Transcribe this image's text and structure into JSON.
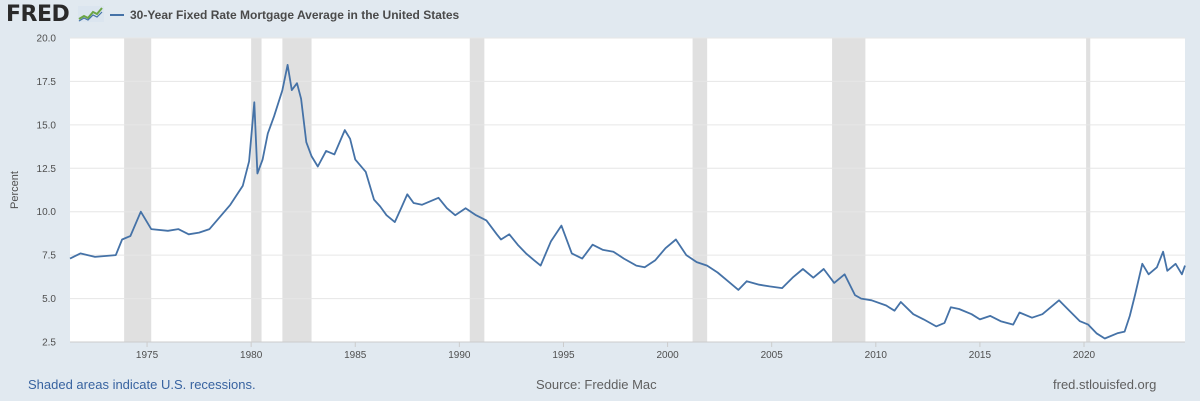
{
  "header": {
    "logo_text": "FRED"
  },
  "footer": {
    "recessions_note": "Shaded areas indicate U.S. recessions.",
    "source": "Source: Freddie Mac",
    "site": "fred.stlouisfed.org"
  },
  "colors": {
    "series": "#4572a7",
    "recession": "#e0e0e0",
    "background": "#e1e9f0",
    "plot_bg": "#ffffff",
    "grid": "#e6e6e6"
  },
  "chart_data": {
    "type": "line",
    "title": "",
    "xlabel": "",
    "ylabel": "Percent",
    "xlim": [
      1971.3,
      2024.85
    ],
    "ylim": [
      2.5,
      20.0
    ],
    "yticks": [
      "2.5",
      "5.0",
      "7.5",
      "10.0",
      "12.5",
      "15.0",
      "17.5",
      "20.0"
    ],
    "xticks": [
      "1975",
      "1980",
      "1985",
      "1990",
      "1995",
      "2000",
      "2005",
      "2010",
      "2015",
      "2020"
    ],
    "grid": "horizontal",
    "legend_position": "top-left",
    "recessions": [
      [
        1973.9,
        1975.2
      ],
      [
        1980.0,
        1980.5
      ],
      [
        1981.5,
        1982.9
      ],
      [
        1990.5,
        1991.2
      ],
      [
        2001.2,
        2001.9
      ],
      [
        2007.9,
        2009.5
      ],
      [
        2020.1,
        2020.3
      ]
    ],
    "series": [
      {
        "name": "30-Year Fixed Rate Mortgage Average in the United States",
        "x": [
          1971.3,
          1971.8,
          1972.5,
          1973.5,
          1973.8,
          1974.2,
          1974.7,
          1975.2,
          1976.0,
          1976.5,
          1977.0,
          1977.5,
          1978.0,
          1978.5,
          1979.0,
          1979.6,
          1979.9,
          1980.15,
          1980.3,
          1980.55,
          1980.8,
          1981.1,
          1981.5,
          1981.75,
          1981.95,
          1982.2,
          1982.4,
          1982.65,
          1982.9,
          1983.2,
          1983.6,
          1984.0,
          1984.5,
          1984.75,
          1985.0,
          1985.5,
          1985.9,
          1986.2,
          1986.5,
          1986.9,
          1987.2,
          1987.5,
          1987.8,
          1988.2,
          1988.6,
          1989.0,
          1989.4,
          1989.8,
          1990.3,
          1990.8,
          1991.3,
          1991.8,
          1992.0,
          1992.4,
          1992.8,
          1993.2,
          1993.6,
          1993.9,
          1994.4,
          1994.9,
          1995.4,
          1995.9,
          1996.4,
          1996.9,
          1997.4,
          1997.9,
          1998.5,
          1998.9,
          1999.4,
          1999.9,
          2000.4,
          2000.9,
          2001.4,
          2001.9,
          2002.4,
          2002.9,
          2003.4,
          2003.8,
          2004.4,
          2004.9,
          2005.5,
          2006.0,
          2006.5,
          2007.0,
          2007.5,
          2008.0,
          2008.5,
          2009.0,
          2009.3,
          2009.8,
          2010.5,
          2010.9,
          2011.2,
          2011.8,
          2012.3,
          2012.9,
          2013.3,
          2013.6,
          2014.0,
          2014.6,
          2015.0,
          2015.5,
          2016.0,
          2016.6,
          2016.9,
          2017.5,
          2018.0,
          2018.8,
          2019.3,
          2019.8,
          2020.2,
          2020.6,
          2021.0,
          2021.6,
          2021.95,
          2022.2,
          2022.45,
          2022.8,
          2023.1,
          2023.5,
          2023.8,
          2024.0,
          2024.4,
          2024.7,
          2024.85
        ],
        "values": [
          7.3,
          7.6,
          7.4,
          7.5,
          8.4,
          8.6,
          10.0,
          9.0,
          8.9,
          9.0,
          8.7,
          8.8,
          9.0,
          9.7,
          10.4,
          11.5,
          12.9,
          16.3,
          12.2,
          13.0,
          14.5,
          15.5,
          17.0,
          18.45,
          17.0,
          17.4,
          16.5,
          14.0,
          13.2,
          12.6,
          13.5,
          13.3,
          14.7,
          14.2,
          13.0,
          12.3,
          10.7,
          10.3,
          9.8,
          9.4,
          10.2,
          11.0,
          10.5,
          10.4,
          10.6,
          10.8,
          10.2,
          9.8,
          10.2,
          9.8,
          9.5,
          8.7,
          8.4,
          8.7,
          8.1,
          7.6,
          7.2,
          6.9,
          8.3,
          9.2,
          7.6,
          7.3,
          8.1,
          7.8,
          7.7,
          7.3,
          6.9,
          6.8,
          7.2,
          7.9,
          8.4,
          7.5,
          7.1,
          6.9,
          6.5,
          6.0,
          5.5,
          6.0,
          5.8,
          5.7,
          5.6,
          6.2,
          6.7,
          6.2,
          6.7,
          5.9,
          6.4,
          5.2,
          5.0,
          4.9,
          4.6,
          4.3,
          4.8,
          4.1,
          3.8,
          3.4,
          3.6,
          4.5,
          4.4,
          4.1,
          3.8,
          4.0,
          3.7,
          3.5,
          4.2,
          3.9,
          4.1,
          4.9,
          4.3,
          3.7,
          3.5,
          3.0,
          2.7,
          3.0,
          3.1,
          4.0,
          5.2,
          7.0,
          6.4,
          6.8,
          7.7,
          6.6,
          7.0,
          6.4,
          6.9
        ]
      }
    ]
  }
}
